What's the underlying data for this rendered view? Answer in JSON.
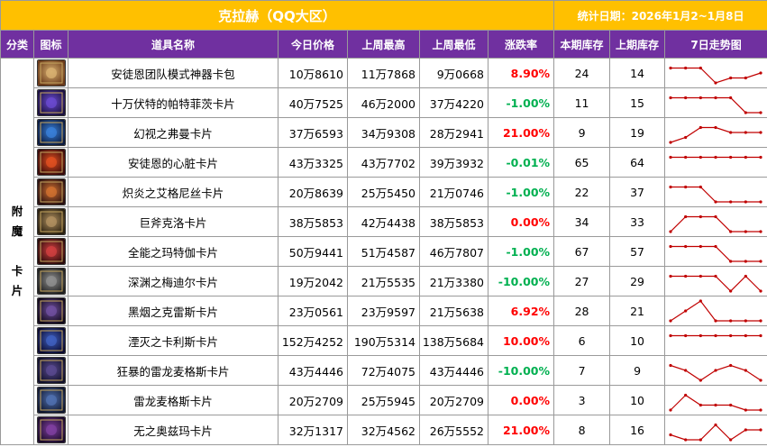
{
  "title": "克拉赫（QQ大区）",
  "date_label": "统计日期：2026年1月2~1月8日",
  "headers": {
    "category": "分类",
    "icon": "图标",
    "name": "道具名称",
    "today": "今日价格",
    "last_high": "上周最高",
    "last_low": "上周最低",
    "change": "涨跌率",
    "stock_now": "本期库存",
    "stock_last": "上期库存",
    "trend": "7日走势图"
  },
  "category": "附魔卡片",
  "colors": {
    "header_bg": "#7030a0",
    "title_bg": "#ffc000",
    "up": "#ff0000",
    "down": "#00b050",
    "trend_line": "#c00000"
  },
  "items": [
    {
      "name": "安徒恩团队模式神器卡包",
      "icon": "card-pack-icon",
      "today": "10万8610",
      "last_high": "11万7868",
      "last_low": "9万0668",
      "change": "8.90%",
      "dir": "up",
      "stock_now": "24",
      "stock_last": "14",
      "trend": [
        4,
        4,
        4,
        1,
        2,
        2,
        3
      ],
      "icon_colors": [
        "#d8b070",
        "#6a3a1a"
      ]
    },
    {
      "name": "十万伏特的帕特菲茨卡片",
      "icon": "lightning-card-icon",
      "today": "40万7525",
      "last_high": "46万2000",
      "last_low": "37万4220",
      "change": "-1.00%",
      "dir": "down",
      "stock_now": "11",
      "stock_last": "15",
      "trend": [
        4,
        4,
        4,
        4,
        4,
        1,
        1
      ],
      "icon_colors": [
        "#6a4ad0",
        "#1a1040"
      ]
    },
    {
      "name": "幻视之弗曼卡片",
      "icon": "phantom-card-icon",
      "today": "37万6593",
      "last_high": "34万9308",
      "last_low": "28万2941",
      "change": "21.00%",
      "dir": "up",
      "stock_now": "9",
      "stock_last": "19",
      "trend": [
        1,
        2,
        4,
        4,
        3,
        3,
        3
      ],
      "icon_colors": [
        "#3a80d8",
        "#0a1a40"
      ]
    },
    {
      "name": "安徒恩的心脏卡片",
      "icon": "heart-card-icon",
      "today": "43万3325",
      "last_high": "43万7702",
      "last_low": "39万3932",
      "change": "-0.01%",
      "dir": "down",
      "stock_now": "65",
      "stock_last": "64",
      "trend": [
        4,
        4,
        4,
        4,
        4,
        4,
        4
      ],
      "icon_colors": [
        "#e05020",
        "#3a0a0a"
      ]
    },
    {
      "name": "炽炎之艾格尼丝卡片",
      "icon": "flame-card-icon",
      "today": "20万8639",
      "last_high": "25万5450",
      "last_low": "21万0746",
      "change": "-1.00%",
      "dir": "down",
      "stock_now": "22",
      "stock_last": "37",
      "trend": [
        4,
        4,
        4,
        1,
        1,
        1,
        1
      ],
      "icon_colors": [
        "#d07030",
        "#2a1010"
      ]
    },
    {
      "name": "巨斧克洛卡片",
      "icon": "axe-card-icon",
      "today": "38万5853",
      "last_high": "42万4438",
      "last_low": "38万5853",
      "change": "0.00%",
      "dir": "up",
      "stock_now": "34",
      "stock_last": "33",
      "trend": [
        1,
        4,
        4,
        4,
        1,
        1,
        1
      ],
      "icon_colors": [
        "#b09060",
        "#2a2010"
      ]
    },
    {
      "name": "全能之玛特伽卡片",
      "icon": "almighty-card-icon",
      "today": "50万9441",
      "last_high": "51万4587",
      "last_low": "46万7807",
      "change": "-1.00%",
      "dir": "down",
      "stock_now": "67",
      "stock_last": "57",
      "trend": [
        4,
        4,
        4,
        4,
        1,
        1,
        1
      ],
      "icon_colors": [
        "#d04040",
        "#2a0a0a"
      ]
    },
    {
      "name": "深渊之梅迪尔卡片",
      "icon": "abyss-card-icon",
      "today": "19万2042",
      "last_high": "21万5535",
      "last_low": "21万3380",
      "change": "-10.00%",
      "dir": "down",
      "stock_now": "27",
      "stock_last": "29",
      "trend": [
        4,
        4,
        4,
        4,
        1,
        4,
        1
      ],
      "icon_colors": [
        "#909090",
        "#202020"
      ]
    },
    {
      "name": "黑烟之克雷斯卡片",
      "icon": "smoke-card-icon",
      "today": "23万0561",
      "last_high": "23万9597",
      "last_low": "21万5638",
      "change": "6.92%",
      "dir": "up",
      "stock_now": "28",
      "stock_last": "21",
      "trend": [
        1,
        3,
        5,
        1,
        1,
        1,
        1
      ],
      "icon_colors": [
        "#7050a0",
        "#10081a"
      ]
    },
    {
      "name": "湮灭之卡利斯卡片",
      "icon": "annihilation-card-icon",
      "today": "152万4252",
      "last_high": "190万5314",
      "last_low": "138万5684",
      "change": "10.00%",
      "dir": "up",
      "stock_now": "6",
      "stock_last": "10",
      "trend": [
        4,
        4,
        4,
        4,
        4,
        4,
        4
      ],
      "icon_colors": [
        "#4060c0",
        "#0a0a30"
      ]
    },
    {
      "name": "狂暴的雷龙麦格斯卡片",
      "icon": "thunder-dragon-card-icon",
      "today": "43万4446",
      "last_high": "72万4075",
      "last_low": "43万4446",
      "change": "-10.00%",
      "dir": "down",
      "stock_now": "7",
      "stock_last": "9",
      "trend": [
        4,
        3,
        1,
        3,
        4,
        3,
        1
      ],
      "icon_colors": [
        "#5a4a90",
        "#10102a"
      ]
    },
    {
      "name": "雷龙麦格斯卡片",
      "icon": "dragon-card-icon",
      "today": "20万2709",
      "last_high": "25万5945",
      "last_low": "20万2709",
      "change": "0.00%",
      "dir": "up",
      "stock_now": "3",
      "stock_last": "10",
      "trend": [
        1,
        4,
        2,
        2,
        2,
        1,
        1
      ],
      "icon_colors": [
        "#5070b0",
        "#101830"
      ]
    },
    {
      "name": "无之奥兹玛卡片",
      "icon": "void-card-icon",
      "today": "32万1317",
      "last_high": "32万4562",
      "last_low": "26万5552",
      "change": "21.00%",
      "dir": "up",
      "stock_now": "8",
      "stock_last": "16",
      "trend": [
        2,
        1,
        1,
        4,
        1,
        3,
        3
      ],
      "icon_colors": [
        "#8040a0",
        "#1a0a2a"
      ]
    }
  ]
}
